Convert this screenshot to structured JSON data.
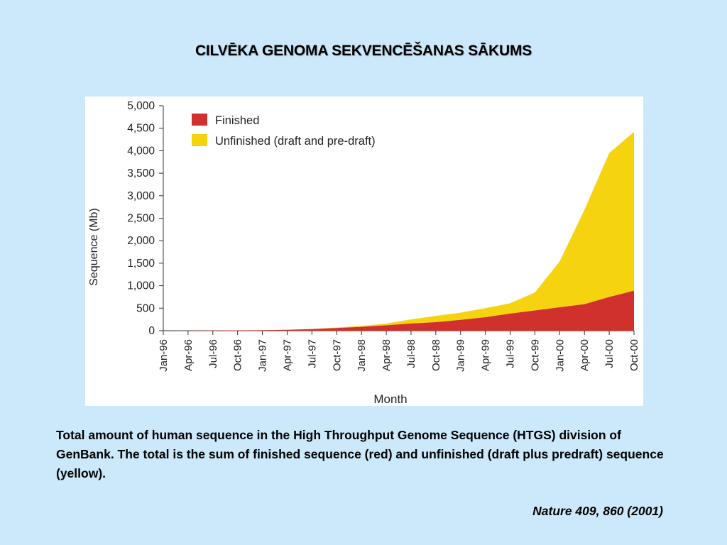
{
  "slide": {
    "title": "CILVĒKA GENOMA SEKVENCĒŠANAS SĀKUMS",
    "caption": "Total amount of human sequence in the High Throughput Genome Sequence (HTGS) division of GenBank. The total is the sum of finished sequence (red) and unfinished (draft plus predraft) sequence (yellow).",
    "citation": "Nature 409, 860 (2001)"
  },
  "chart_data": {
    "type": "area",
    "stacked": true,
    "title": "",
    "xlabel": "Month",
    "ylabel": "Sequence (Mb)",
    "ylim": [
      0,
      5000
    ],
    "yticks": [
      0,
      500,
      1000,
      1500,
      2000,
      2500,
      3000,
      3500,
      4000,
      4500,
      5000
    ],
    "ytick_labels": [
      "0",
      "500",
      "1,000",
      "1,500",
      "2,000",
      "2,500",
      "3,000",
      "3,500",
      "4,000",
      "4,500",
      "5,000"
    ],
    "categories": [
      "Jan-96",
      "Apr-96",
      "Jul-96",
      "Oct-96",
      "Jan-97",
      "Apr-97",
      "Jul-97",
      "Oct-97",
      "Jan-98",
      "Apr-98",
      "Jul-98",
      "Oct-98",
      "Jan-99",
      "Apr-99",
      "Jul-99",
      "Oct-99",
      "Jan-00",
      "Apr-00",
      "Jul-00",
      "Oct-00"
    ],
    "legend_position": "top-left",
    "grid": false,
    "series": [
      {
        "name": "Finished",
        "color": "#d0312d",
        "values": [
          0,
          2,
          5,
          8,
          12,
          20,
          35,
          60,
          85,
          120,
          160,
          190,
          240,
          300,
          380,
          450,
          520,
          590,
          750,
          890
        ]
      },
      {
        "name": "Unfinished (draft and pre-draft)",
        "color": "#f5d40f",
        "values": [
          0,
          0,
          0,
          0,
          0,
          2,
          5,
          10,
          20,
          40,
          90,
          140,
          160,
          200,
          230,
          400,
          1020,
          2100,
          3200,
          3530
        ]
      }
    ]
  }
}
